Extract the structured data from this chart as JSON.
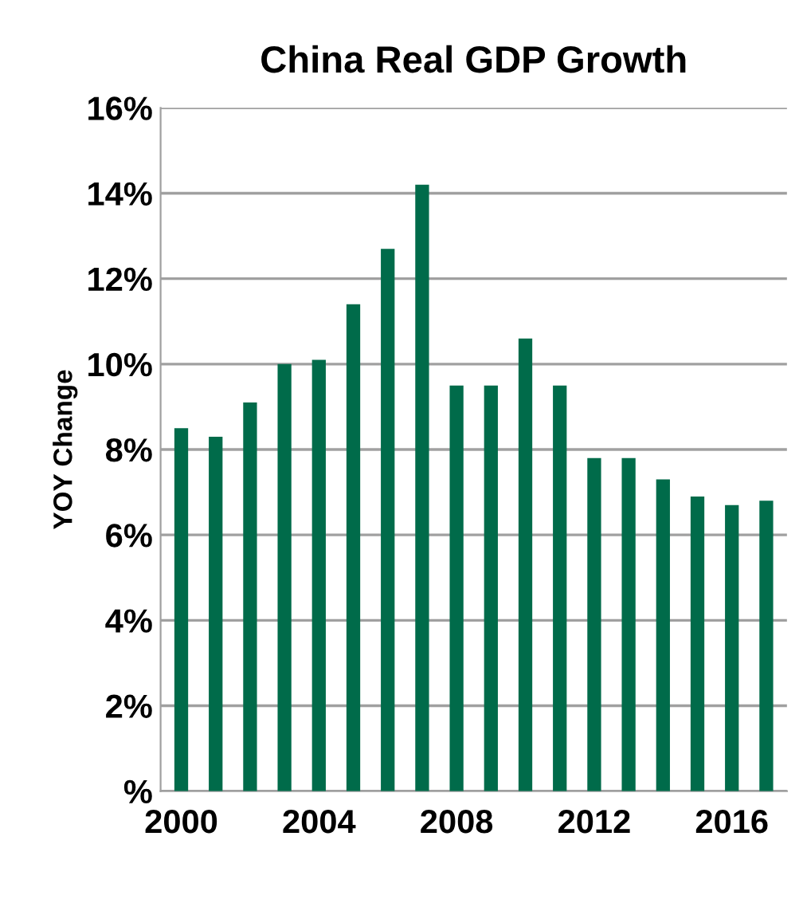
{
  "chart_data": {
    "type": "bar",
    "title": "China Real GDP Growth",
    "ylabel": "YOY Change",
    "categories": [
      "2000",
      null,
      null,
      null,
      "2004",
      null,
      null,
      null,
      "2008",
      null,
      null,
      null,
      "2012",
      null,
      null,
      null,
      "2016",
      null
    ],
    "series": [
      {
        "color": "#006b4a",
        "values": [
          8.5,
          8.3,
          9.1,
          10.0,
          10.1,
          11.4,
          12.7,
          14.2,
          9.5,
          9.5,
          10.6,
          9.5,
          7.8,
          7.8,
          7.3,
          6.9,
          6.7,
          6.8
        ]
      }
    ],
    "ylim": [
      0,
      16
    ],
    "yticks": [
      {
        "value": 0,
        "label": "%"
      },
      {
        "value": 2,
        "label": "2%"
      },
      {
        "value": 4,
        "label": "4%"
      },
      {
        "value": 6,
        "label": "6%"
      },
      {
        "value": 8,
        "label": "8%"
      },
      {
        "value": 10,
        "label": "10%"
      },
      {
        "value": 12,
        "label": "12%"
      },
      {
        "value": 14,
        "label": "14%"
      },
      {
        "value": 16,
        "label": "16%"
      }
    ],
    "grid": "y"
  }
}
